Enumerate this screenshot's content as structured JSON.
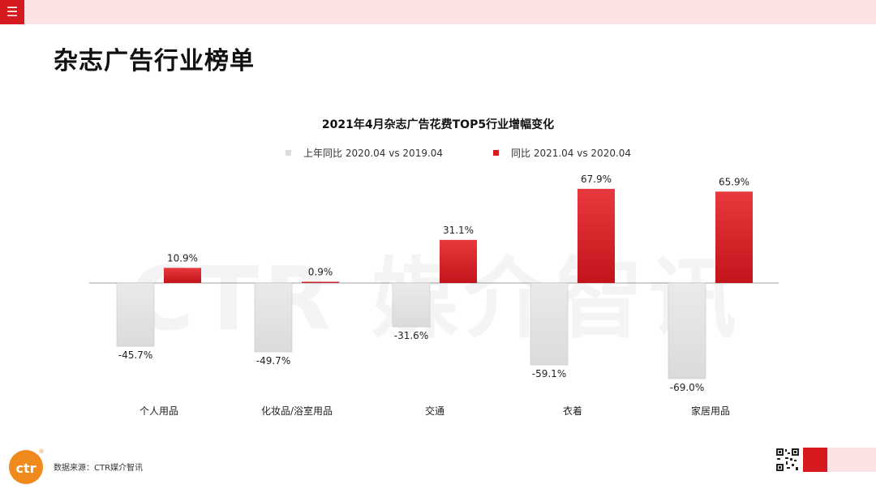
{
  "menu_icon": "menu-icon",
  "page_title": "杂志广告行业榜单",
  "watermark": "CTR 媒介智讯",
  "source_text": "数据来源：CTR媒介智讯",
  "logo_text": "ctr",
  "logo_mark": "®",
  "colors": {
    "accent": "#d71920",
    "light_band": "#fbe3e3",
    "gray_bar": "#e3e1e1"
  },
  "chart_data": {
    "type": "bar",
    "title": "2021年4月杂志广告花费TOP5行业增幅变化",
    "categories": [
      "个人用品",
      "化妆品/浴室用品",
      "交通",
      "衣着",
      "家居用品"
    ],
    "series": [
      {
        "name": "上年同比 2020.04 vs 2019.04",
        "color": "#e3e1e1",
        "values": [
          -45.7,
          -49.7,
          -31.6,
          -59.1,
          -69.0
        ]
      },
      {
        "name": "同比 2021.04 vs 2020.04",
        "color": "#d71920",
        "values": [
          10.9,
          0.9,
          31.1,
          67.9,
          65.9
        ]
      }
    ],
    "data_labels": [
      [
        "-45.7%",
        "-49.7%",
        "-31.6%",
        "-59.1%",
        "-69.0%"
      ],
      [
        "10.9%",
        "0.9%",
        "31.1%",
        "67.9%",
        "65.9%"
      ]
    ],
    "xlabel": "",
    "ylabel": "",
    "ylim": [
      -69.0,
      67.9
    ],
    "legend_position": "top-center",
    "grid": false
  }
}
